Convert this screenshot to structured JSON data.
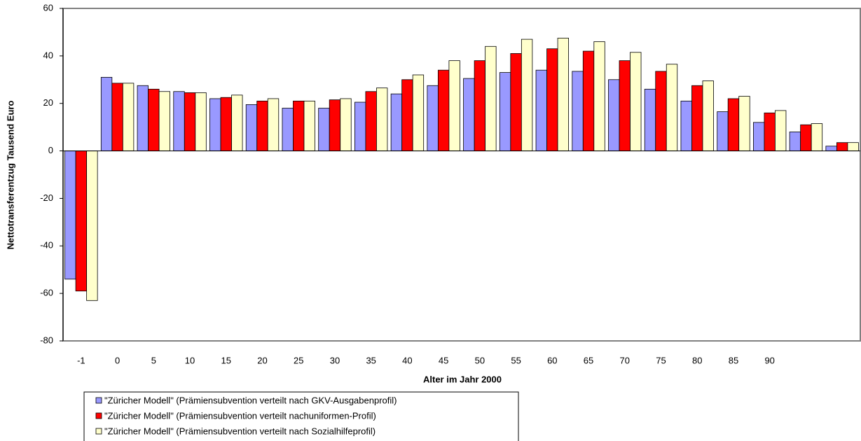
{
  "chart_data": {
    "type": "bar",
    "y_label": "Nettotransferentzug Tausend Euro",
    "x_label": "Alter im Jahr 2000",
    "categories": [
      "-1",
      "0",
      "5",
      "10",
      "15",
      "20",
      "25",
      "30",
      "35",
      "40",
      "45",
      "50",
      "55",
      "60",
      "65",
      "70",
      "75",
      "80",
      "85",
      "90",
      null,
      null
    ],
    "series": [
      {
        "name": "\"Züricher Modell\" (Prämiensubvention verteilt nach GKV-Ausgabenprofil)",
        "color": "#9999ff",
        "values": [
          -54,
          31,
          27.5,
          25,
          22,
          19.5,
          18,
          18,
          20.5,
          24,
          27.5,
          30.5,
          33,
          34,
          33.5,
          30,
          26,
          21,
          16.5,
          12,
          8,
          2
        ]
      },
      {
        "name": "\"Züricher Modell\" (Prämiensubvention verteilt nachuniformen-Profil)",
        "color": "#ff0000",
        "values": [
          -59,
          28.5,
          26,
          24.5,
          22.5,
          21,
          21,
          21.5,
          25,
          30,
          34,
          38,
          41,
          43,
          42,
          38,
          33.5,
          27.5,
          22,
          16,
          11,
          3.5
        ]
      },
      {
        "name": "\"Züricher Modell\" (Prämiensubvention verteilt nach Sozialhilfeprofil)",
        "color": "#ffffcc",
        "values": [
          -63,
          28.5,
          25,
          24.5,
          23.5,
          22,
          21,
          22,
          26.5,
          32,
          38,
          44,
          47,
          47.5,
          46,
          41.5,
          36.5,
          29.5,
          23,
          17,
          11.5,
          3.5
        ]
      }
    ],
    "ylim": [
      -80,
      60
    ],
    "yticks": [
      -80,
      -60,
      -40,
      -20,
      0,
      20,
      40,
      60
    ]
  }
}
